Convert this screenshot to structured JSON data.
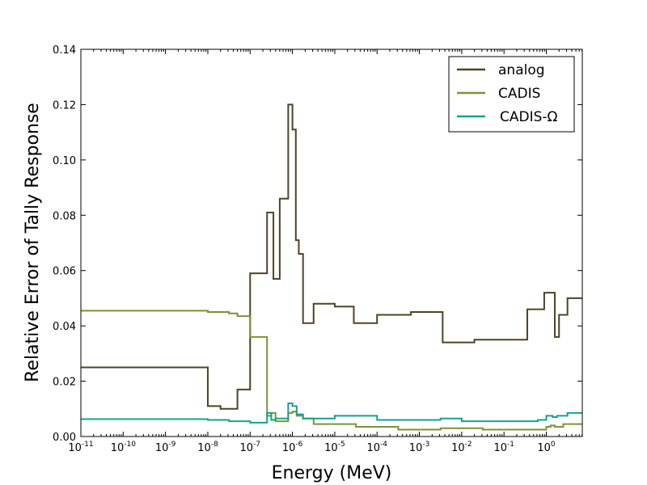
{
  "chart_data": {
    "type": "line",
    "step": true,
    "title": "",
    "xlabel": "Energy (MeV)",
    "ylabel": "Relative Error of Tally  Response",
    "xscale": "log",
    "xlim_exp": [
      -11,
      0.85
    ],
    "ylim": [
      0,
      0.14
    ],
    "x_ticks": [
      {
        "base": "10",
        "exp": "-11",
        "value": -11
      },
      {
        "base": "10",
        "exp": "-10",
        "value": -10
      },
      {
        "base": "10",
        "exp": "-9",
        "value": -9
      },
      {
        "base": "10",
        "exp": "-8",
        "value": -8
      },
      {
        "base": "10",
        "exp": "-7",
        "value": -7
      },
      {
        "base": "10",
        "exp": "-6",
        "value": -6
      },
      {
        "base": "10",
        "exp": "-5",
        "value": -5
      },
      {
        "base": "10",
        "exp": "-4",
        "value": -4
      },
      {
        "base": "10",
        "exp": "-3",
        "value": -3
      },
      {
        "base": "10",
        "exp": "-2",
        "value": -2
      },
      {
        "base": "10",
        "exp": "-1",
        "value": -1
      },
      {
        "base": "10",
        "exp": "0",
        "value": 0
      }
    ],
    "y_ticks": [
      "0.00",
      "0.02",
      "0.04",
      "0.06",
      "0.08",
      "0.10",
      "0.12",
      "0.14"
    ],
    "legend_position": "top-right",
    "series": [
      {
        "name": "analog",
        "color": "#4d4426",
        "bin_edges_log10": [
          -11,
          -8,
          -7.7,
          -7.3,
          -7,
          -6.6,
          -6.45,
          -6.3,
          -6.1,
          -6,
          -5.92,
          -5.85,
          -5.75,
          -5.5,
          -5,
          -4.55,
          -4,
          -3.2,
          -2.45,
          -1.7,
          -0.45,
          -0.05,
          0.2,
          0.3,
          0.5,
          0.85
        ],
        "values": [
          0.025,
          0.011,
          0.01,
          0.017,
          0.059,
          0.081,
          0.057,
          0.086,
          0.12,
          0.111,
          0.071,
          0.066,
          0.041,
          0.048,
          0.047,
          0.041,
          0.044,
          0.045,
          0.034,
          0.035,
          0.046,
          0.052,
          0.036,
          0.044,
          0.05
        ]
      },
      {
        "name": "CADIS",
        "color": "#7d9138",
        "bin_edges_log10": [
          -11,
          -8,
          -7.5,
          -7.3,
          -7,
          -6.6,
          -6.5,
          -6.4,
          -6.1,
          -6,
          -5.9,
          -5.75,
          -5.5,
          -4.5,
          -3.5,
          -2.5,
          -1.5,
          0,
          0.1,
          0.2,
          0.4,
          0.85
        ],
        "values": [
          0.0455,
          0.045,
          0.0445,
          0.0435,
          0.036,
          0.0075,
          0.0085,
          0.0055,
          0.0085,
          0.009,
          0.0075,
          0.0065,
          0.0045,
          0.0035,
          0.0025,
          0.003,
          0.0025,
          0.0035,
          0.004,
          0.0035,
          0.0045
        ]
      },
      {
        "name": "CADIS-Ω",
        "color": "#17a08e",
        "bin_edges_log10": [
          -11,
          -8,
          -7.5,
          -7,
          -6.6,
          -6.5,
          -6.4,
          -6.1,
          -6,
          -5.9,
          -5.75,
          -5,
          -4,
          -2.5,
          -2,
          -1,
          -0.2,
          0,
          0.15,
          0.25,
          0.5,
          0.85
        ],
        "values": [
          0.0063,
          0.006,
          0.0055,
          0.005,
          0.0085,
          0.006,
          0.0065,
          0.012,
          0.011,
          0.008,
          0.0065,
          0.0075,
          0.006,
          0.0065,
          0.0055,
          0.0055,
          0.006,
          0.0075,
          0.007,
          0.0075,
          0.0085
        ]
      }
    ]
  }
}
